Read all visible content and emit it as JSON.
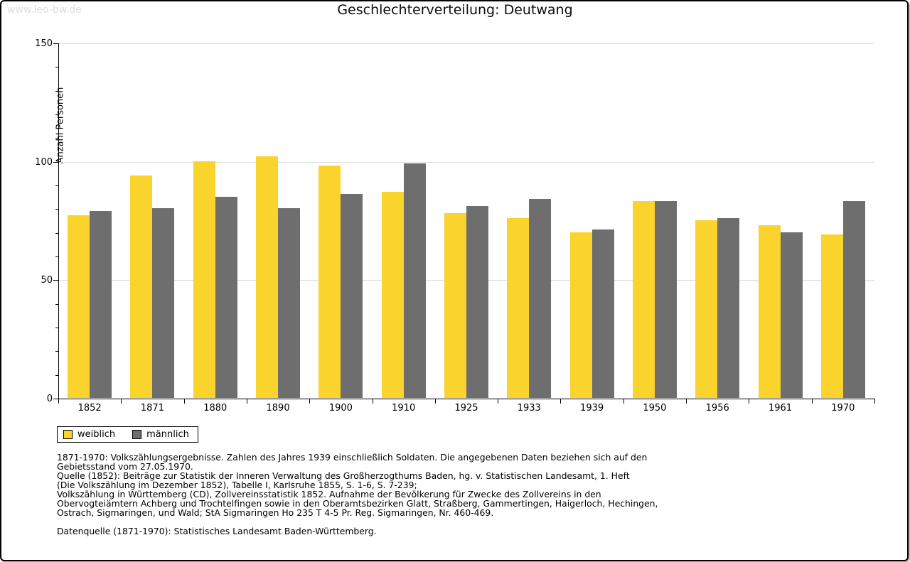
{
  "watermark": "www.leo-bw.de",
  "header": {
    "title": "Geschlechterverteilung: Deutwang"
  },
  "colors": {
    "weiblich": "#FBD32D",
    "maennlich": "#6E6E6E",
    "grid": "#DCDCDC",
    "axis": "#000000",
    "watermark": "#DEDEDE"
  },
  "chart_data": {
    "type": "bar",
    "title": "Geschlechterverteilung: Deutwang",
    "xlabel": "",
    "ylabel": "Anzahl Personen",
    "categories": [
      "1852",
      "1871",
      "1880",
      "1890",
      "1900",
      "1910",
      "1925",
      "1933",
      "1939",
      "1950",
      "1956",
      "1961",
      "1970"
    ],
    "series": [
      {
        "name": "weiblich",
        "color": "#FBD32D",
        "values": [
          77,
          94,
          100,
          102,
          98,
          87,
          78,
          76,
          70,
          83,
          75,
          73,
          69
        ]
      },
      {
        "name": "männlich",
        "color": "#6E6E6E",
        "values": [
          79,
          80,
          85,
          80,
          86,
          99,
          81,
          84,
          71,
          83,
          76,
          70,
          83
        ]
      }
    ],
    "ylim": [
      0,
      150
    ],
    "yticks": [
      0,
      50,
      100,
      150
    ],
    "minor_tick_step": 10,
    "grid": true,
    "legend_position": "bottom-left"
  },
  "legend": {
    "items": [
      {
        "label": "weiblich",
        "color": "#FBD32D"
      },
      {
        "label": "männlich",
        "color": "#6E6E6E"
      }
    ]
  },
  "footnotes": [
    "1871-1970: Volkszählungsergebnisse. Zahlen des Jahres 1939 einschließlich Soldaten. Die angegebenen Daten beziehen sich auf den",
    "Gebietsstand vom 27.05.1970.",
    "Quelle (1852): Beiträge zur Statistik der Inneren Verwaltung des Großherzogthums Baden, hg. v. Statistischen Landesamt, 1. Heft",
    "(Die Volkszählung im Dezember 1852), Tabelle I, Karlsruhe 1855, S. 1-6, S. 7-239;",
    "Volkszählung in Württemberg (CD), Zollvereinsstatistik 1852. Aufnahme der Bevölkerung für Zwecke des Zollvereins in den",
    "Obervogteiämtern Achberg und Trochtelfingen sowie in den Oberamtsbezirken Glatt, Straßberg, Gammertingen, Haigerloch, Hechingen,",
    "Ostrach, Sigmaringen, und Wald; StA Sigmaringen Ho 235 T 4-5 Pr. Reg. Sigmaringen, Nr. 460-469."
  ],
  "datasource": "Datenquelle (1871-1970): Statistisches Landesamt Baden-Württemberg."
}
